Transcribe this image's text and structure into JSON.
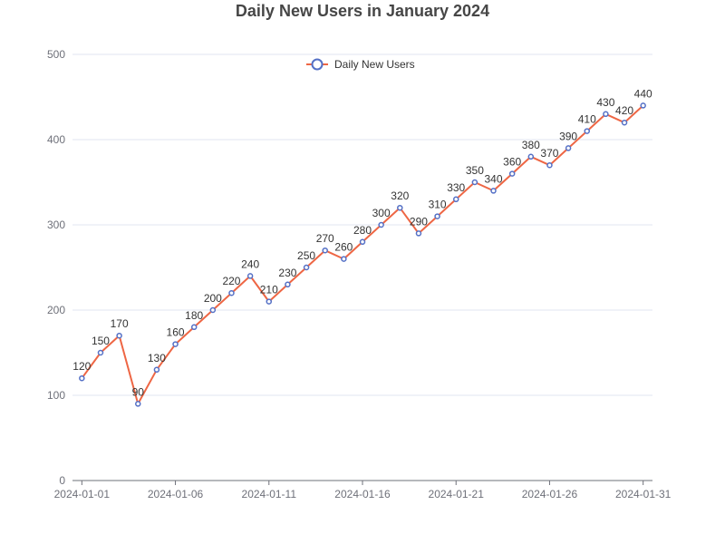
{
  "chart_data": {
    "type": "line",
    "title": "Daily New Users in January 2024",
    "x": [
      "2024-01-01",
      "2024-01-02",
      "2024-01-03",
      "2024-01-04",
      "2024-01-05",
      "2024-01-06",
      "2024-01-07",
      "2024-01-08",
      "2024-01-09",
      "2024-01-10",
      "2024-01-11",
      "2024-01-12",
      "2024-01-13",
      "2024-01-14",
      "2024-01-15",
      "2024-01-16",
      "2024-01-17",
      "2024-01-18",
      "2024-01-19",
      "2024-01-20",
      "2024-01-21",
      "2024-01-22",
      "2024-01-23",
      "2024-01-24",
      "2024-01-25",
      "2024-01-26",
      "2024-01-27",
      "2024-01-28",
      "2024-01-29",
      "2024-01-30",
      "2024-01-31"
    ],
    "series": [
      {
        "name": "Daily New Users",
        "values": [
          120,
          150,
          170,
          90,
          130,
          160,
          180,
          200,
          220,
          240,
          210,
          230,
          250,
          270,
          260,
          280,
          300,
          320,
          290,
          310,
          330,
          350,
          340,
          360,
          380,
          370,
          390,
          410,
          430,
          420,
          440
        ]
      }
    ],
    "x_tick_labels": [
      "2024-01-01",
      "2024-01-06",
      "2024-01-11",
      "2024-01-16",
      "2024-01-21",
      "2024-01-26",
      "2024-01-31"
    ],
    "y_ticks": [
      0,
      100,
      200,
      300,
      400,
      500
    ],
    "ylim": [
      0,
      500
    ],
    "xlabel": "",
    "ylabel": "",
    "grid": true,
    "legend_position": "top-center",
    "colors": {
      "line": "#ee6644",
      "marker_stroke": "#5470c6",
      "marker_fill": "#ffffff",
      "grid": "#e0e6f1",
      "axis": "#6e7079"
    }
  }
}
